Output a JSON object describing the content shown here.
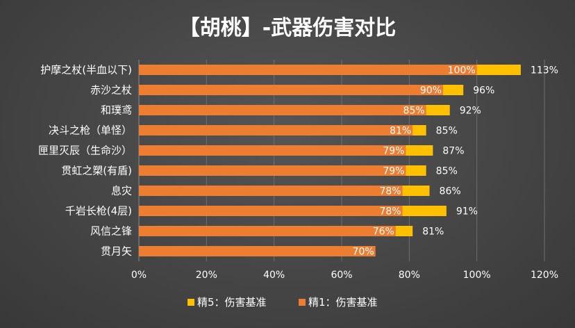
{
  "chart_data": {
    "type": "bar",
    "orientation": "horizontal",
    "title": "【胡桃】-武器伤害对比",
    "categories": [
      "护摩之杖(半血以下)",
      "赤沙之杖",
      "和璞鸢",
      "决斗之枪（单怪）",
      "匣里灭辰（生命沙）",
      "贯虹之槊(有盾)",
      "息灾",
      "千岩长枪(4层)",
      "风信之锋",
      "贯月矢"
    ],
    "series": [
      {
        "name": "精5：伤害基准",
        "values": [
          113,
          96,
          92,
          85,
          87,
          85,
          86,
          91,
          81,
          null
        ],
        "labels": [
          "113%",
          "96%",
          "92%",
          "85%",
          "87%",
          "85%",
          "86%",
          "91%",
          "81%",
          ""
        ],
        "color": "#ffc000"
      },
      {
        "name": "精1：伤害基准",
        "values": [
          100,
          90,
          85,
          81,
          79,
          79,
          78,
          78,
          76,
          70
        ],
        "labels": [
          "100%",
          "90%",
          "85%",
          "81%",
          "79%",
          "79%",
          "78%",
          "78%",
          "76%",
          "70%"
        ],
        "color": "#ed7d31"
      }
    ],
    "x_ticks": [
      "0%",
      "20%",
      "40%",
      "60%",
      "80%",
      "100%",
      "120%"
    ],
    "xlim": [
      0,
      120
    ],
    "grid": true,
    "legend_position": "bottom",
    "colors": {
      "background": "#454545",
      "grid": "#6e6e6e",
      "text": "#ffffff"
    }
  }
}
